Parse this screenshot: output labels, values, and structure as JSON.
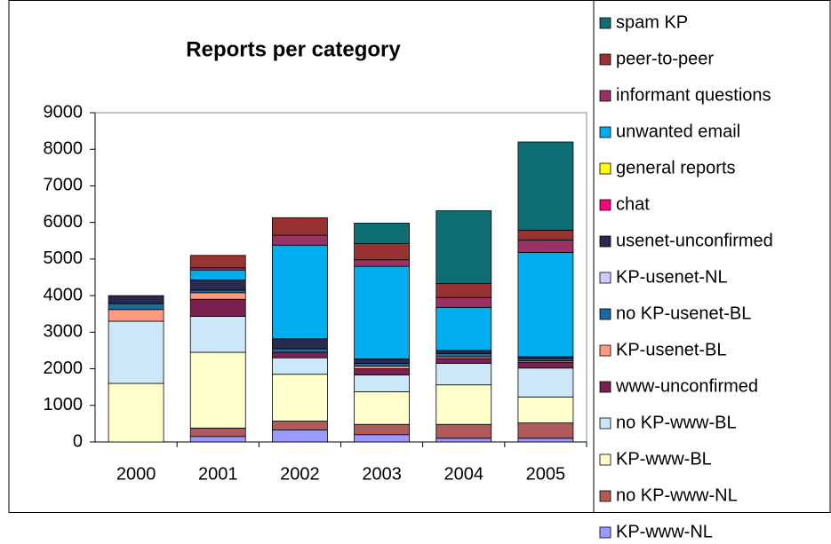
{
  "chart_data": {
    "type": "stacked_bar",
    "title": "Reports per category",
    "categories": [
      "2000",
      "2001",
      "2002",
      "2003",
      "2004",
      "2005"
    ],
    "ylim": [
      0,
      9000
    ],
    "yticks": [
      0,
      1000,
      2000,
      3000,
      4000,
      5000,
      6000,
      7000,
      8000,
      9000
    ],
    "grid": false,
    "legend": "right",
    "series": [
      {
        "name": "spam KP",
        "color": "#0f6e73",
        "values": [
          0,
          0,
          0,
          560,
          1990,
          2410
        ]
      },
      {
        "name": "peer-to-peer",
        "color": "#993333",
        "values": [
          0,
          340,
          480,
          440,
          380,
          270
        ]
      },
      {
        "name": "informant questions",
        "color": "#993366",
        "values": [
          0,
          60,
          270,
          180,
          270,
          340
        ]
      },
      {
        "name": "unwanted email",
        "color": "#00aeef",
        "values": [
          0,
          270,
          2560,
          2530,
          1180,
          2850
        ]
      },
      {
        "name": "general reports",
        "color": "#ffff00",
        "values": [
          0,
          0,
          0,
          0,
          0,
          0
        ]
      },
      {
        "name": "chat",
        "color": "#ff0080",
        "values": [
          0,
          0,
          0,
          0,
          0,
          0
        ]
      },
      {
        "name": "usenet-unconfirmed",
        "color": "#2a2a50",
        "values": [
          220,
          280,
          270,
          120,
          80,
          50
        ]
      },
      {
        "name": "KP-usenet-NL",
        "color": "#ccccff",
        "values": [
          0,
          0,
          0,
          0,
          0,
          0
        ]
      },
      {
        "name": "no KP-usenet-BL",
        "color": "#1a6aa0",
        "values": [
          160,
          70,
          100,
          80,
          90,
          60
        ]
      },
      {
        "name": "KP-usenet-BL",
        "color": "#ff9980",
        "values": [
          320,
          180,
          0,
          70,
          50,
          40
        ]
      },
      {
        "name": "www-unconfirmed",
        "color": "#7a2050",
        "values": [
          0,
          470,
          150,
          170,
          130,
          160
        ]
      },
      {
        "name": "no KP-www-BL",
        "color": "#cce8f8",
        "values": [
          1700,
          980,
          450,
          460,
          590,
          790
        ]
      },
      {
        "name": "KP-www-BL",
        "color": "#ffffcc",
        "values": [
          1600,
          2070,
          1280,
          890,
          1080,
          710
        ]
      },
      {
        "name": "no KP-www-NL",
        "color": "#b05a5a",
        "values": [
          0,
          230,
          240,
          280,
          380,
          420
        ]
      },
      {
        "name": "KP-www-NL",
        "color": "#9999ff",
        "values": [
          0,
          150,
          330,
          200,
          100,
          100
        ]
      }
    ]
  }
}
